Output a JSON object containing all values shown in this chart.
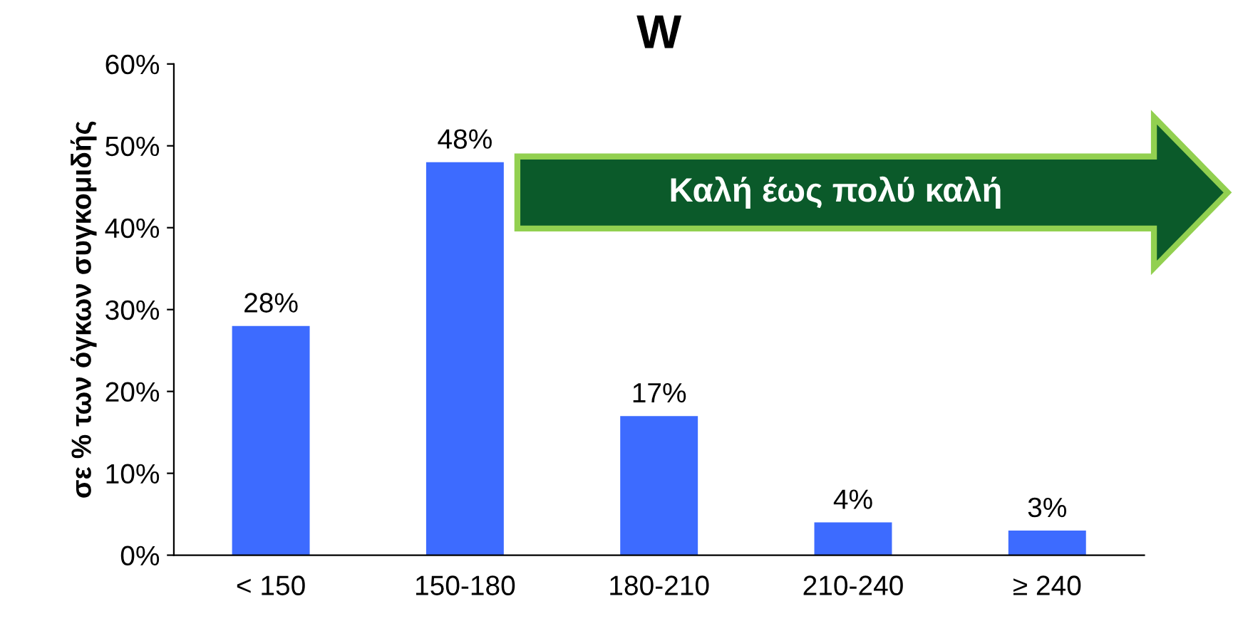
{
  "chart_data": {
    "type": "bar",
    "title": "W",
    "ylabel": "σε % των όγκων συγκομιδής",
    "categories": [
      "< 150",
      "150-180",
      "180-210",
      "210-240",
      "≥ 240"
    ],
    "values": [
      28,
      48,
      17,
      4,
      3
    ],
    "color": "#3d6bff",
    "value_labels": [
      "28%",
      "48%",
      "17%",
      "4%",
      "3%"
    ],
    "ylim": [
      0,
      60
    ],
    "yticks": [
      {
        "value": 0,
        "label": "0%"
      },
      {
        "value": 10,
        "label": "10%"
      },
      {
        "value": 20,
        "label": "20%"
      },
      {
        "value": 30,
        "label": "30%"
      },
      {
        "value": 40,
        "label": "40%"
      },
      {
        "value": 50,
        "label": "50%"
      },
      {
        "value": 60,
        "label": "60%"
      }
    ],
    "annotations": [
      "Καλή έως πολύ καλή"
    ],
    "grid": false
  }
}
